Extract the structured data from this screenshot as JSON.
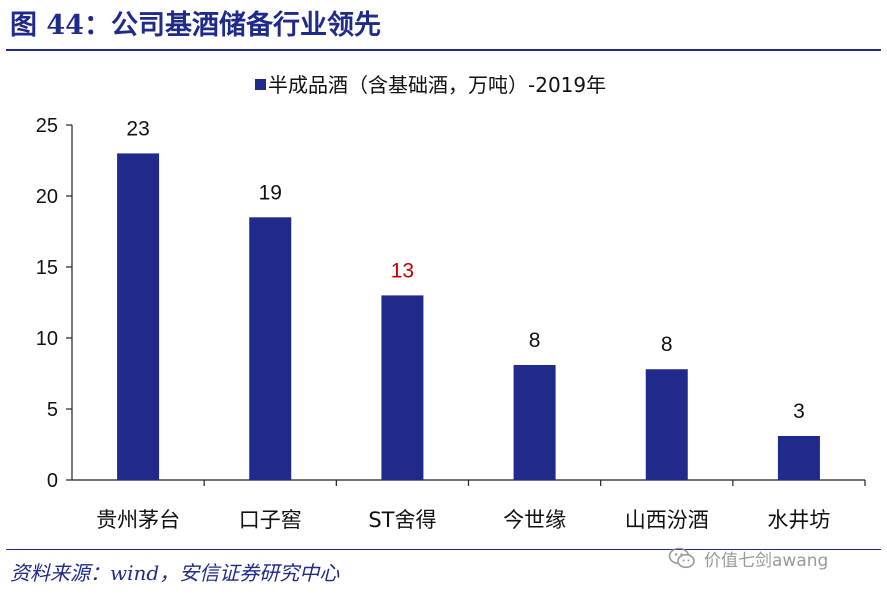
{
  "header": {
    "title": "图 44：公司基酒储备行业领先"
  },
  "footer": {
    "source": "资料来源：wind，安信证券研究中心"
  },
  "watermark": {
    "text": "价值七剑awang",
    "icon": "wechat-icon"
  },
  "colors": {
    "title": "#1f2a8a",
    "bar": "#1f2a8a",
    "text": "#111111",
    "highlight_label": "#c00000",
    "axis": "#222222",
    "watermark": "#888888"
  },
  "chart_data": {
    "type": "bar",
    "title": "",
    "xlabel": "",
    "ylabel": "",
    "legend_position": "top-center",
    "grid": false,
    "ylim": [
      0,
      25
    ],
    "yticks": [
      0,
      5,
      10,
      15,
      20,
      25
    ],
    "categories": [
      "贵州茅台",
      "口子窖",
      "ST舍得",
      "今世缘",
      "山西汾酒",
      "水井坊"
    ],
    "series": [
      {
        "name": "半成品酒（含基础酒，万吨）-2019年",
        "values": [
          23,
          18.5,
          13,
          8.1,
          7.8,
          3.1
        ],
        "data_labels": [
          "23",
          "19",
          "13",
          "8",
          "8",
          "3"
        ],
        "highlight_label_index": 2
      }
    ]
  }
}
